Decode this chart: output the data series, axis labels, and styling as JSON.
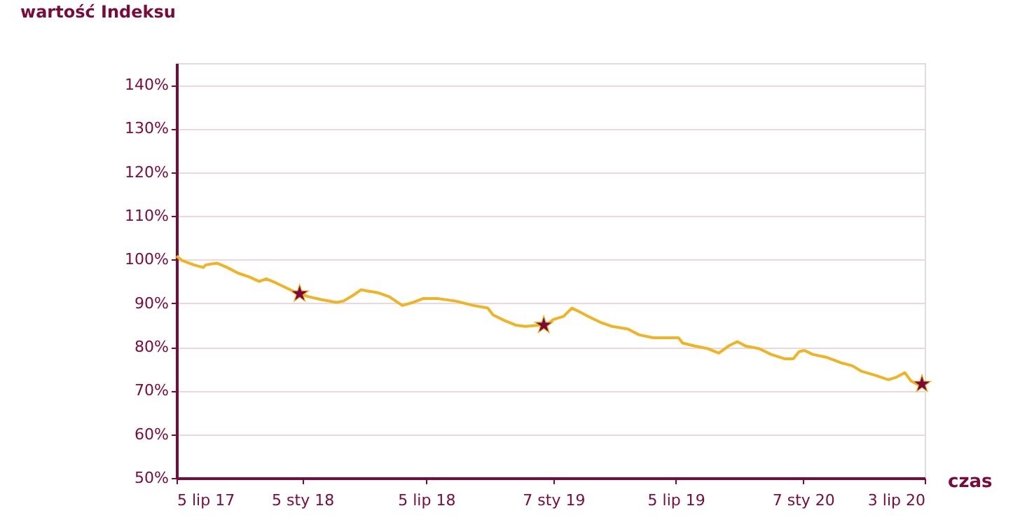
{
  "chart_data": {
    "type": "line",
    "ylabel": "wartość Indeksu",
    "xlabel": "czas",
    "xlim": [
      "2017-07-05",
      "2020-07-03"
    ],
    "xticks": [
      {
        "value": "2017-07-05",
        "label": "5 lip 17"
      },
      {
        "value": "2018-01-05",
        "label": "5 sty 18"
      },
      {
        "value": "2018-07-05",
        "label": "5 lip 18"
      },
      {
        "value": "2019-01-07",
        "label": "7 sty 19"
      },
      {
        "value": "2019-07-05",
        "label": "5 lip 19"
      },
      {
        "value": "2020-01-07",
        "label": "7 sty 20"
      },
      {
        "value": "2020-07-03",
        "label": "3 lip 20"
      }
    ],
    "ylim": [
      50,
      145
    ],
    "yticks": [
      {
        "value": 50,
        "label": "50%"
      },
      {
        "value": 60,
        "label": "60%"
      },
      {
        "value": 70,
        "label": "70%"
      },
      {
        "value": 80,
        "label": "80%"
      },
      {
        "value": 90,
        "label": "90%"
      },
      {
        "value": 100,
        "label": "100%"
      },
      {
        "value": 110,
        "label": "110%"
      },
      {
        "value": 120,
        "label": "120%"
      },
      {
        "value": 130,
        "label": "130%"
      },
      {
        "value": 140,
        "label": "140%"
      }
    ],
    "grid": "y",
    "series": [
      {
        "color": "#f0b323",
        "marker": "none",
        "line_style": "solid",
        "x": [
          "2017-07-05",
          "2017-07-13",
          "2017-07-30",
          "2017-08-13",
          "2017-08-17",
          "2017-09-02",
          "2017-09-17",
          "2017-10-03",
          "2017-10-20",
          "2017-11-03",
          "2017-11-13",
          "2017-11-27",
          "2017-12-14",
          "2017-12-28",
          "2018-01-14",
          "2018-02-03",
          "2018-02-24",
          "2018-03-06",
          "2018-03-20",
          "2018-04-01",
          "2018-04-10",
          "2018-04-26",
          "2018-05-12",
          "2018-05-31",
          "2018-06-16",
          "2018-07-01",
          "2018-07-21",
          "2018-08-17",
          "2018-09-12",
          "2018-10-03",
          "2018-10-11",
          "2018-10-28",
          "2018-11-13",
          "2018-11-27",
          "2018-12-18",
          "2018-12-28",
          "2019-01-07",
          "2019-01-22",
          "2019-02-03",
          "2019-02-11",
          "2019-02-27",
          "2019-03-16",
          "2019-04-03",
          "2019-04-26",
          "2019-05-12",
          "2019-06-02",
          "2019-06-22",
          "2019-07-09",
          "2019-07-15",
          "2019-08-02",
          "2019-08-21",
          "2019-09-06",
          "2019-09-20",
          "2019-10-03",
          "2019-10-15",
          "2019-11-04",
          "2019-11-21",
          "2019-12-11",
          "2019-12-24",
          "2020-01-01",
          "2020-01-09",
          "2020-01-21",
          "2020-02-11",
          "2020-03-02",
          "2020-03-19",
          "2020-04-02",
          "2020-04-22",
          "2020-05-11",
          "2020-05-23",
          "2020-06-04",
          "2020-06-13",
          "2020-06-29"
        ],
        "values": [
          100.8,
          99.8,
          98.8,
          98.2,
          98.8,
          99.2,
          98.2,
          96.9,
          96,
          95,
          95.6,
          94.7,
          93.4,
          92.4,
          91.5,
          90.8,
          90.2,
          90.5,
          91.8,
          93.1,
          92.8,
          92.4,
          91.5,
          89.5,
          90.2,
          91.1,
          91.1,
          90.5,
          89.5,
          88.9,
          87.3,
          86,
          85,
          84.7,
          85,
          85,
          86.3,
          87,
          88.9,
          88.3,
          87,
          85.7,
          84.7,
          84.1,
          82.8,
          82.1,
          82.1,
          82.1,
          80.9,
          80.2,
          79.6,
          78.6,
          80.2,
          81.2,
          80.2,
          79.6,
          78.3,
          77.3,
          77.3,
          78.9,
          79.2,
          78.3,
          77.6,
          76.4,
          75.7,
          74.4,
          73.5,
          72.5,
          73.1,
          74.1,
          72.2,
          70.9
        ]
      },
      {
        "type": "scatter",
        "color": "#7a0a3c",
        "marker": "star",
        "x": [
          "2018-01-01",
          "2018-12-24",
          "2020-06-29"
        ],
        "values": [
          92.2,
          85,
          71.5
        ]
      }
    ]
  }
}
